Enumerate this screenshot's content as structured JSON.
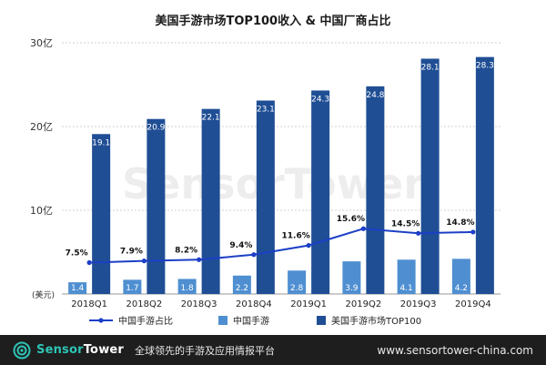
{
  "chart_data": {
    "type": "bar",
    "title": "美国手游市场TOP100收入 & 中国厂商占比",
    "unit_label": "(美元)",
    "categories": [
      "2018Q1",
      "2018Q2",
      "2018Q3",
      "2018Q4",
      "2019Q1",
      "2019Q2",
      "2019Q3",
      "2019Q4"
    ],
    "y_ticks": [
      {
        "value": 10,
        "label": "10亿"
      },
      {
        "value": 20,
        "label": "20亿"
      },
      {
        "value": 30,
        "label": "30亿"
      }
    ],
    "ylim": [
      0,
      30
    ],
    "grid": true,
    "legend_position": "bottom",
    "series": [
      {
        "name": "中国手游",
        "kind": "bar",
        "color": "#4f8fd1",
        "values": [
          1.4,
          1.7,
          1.8,
          2.2,
          2.8,
          3.9,
          4.1,
          4.2
        ],
        "labels": [
          "1.4",
          "1.7",
          "1.8",
          "2.2",
          "2.8",
          "3.9",
          "4.1",
          "4.2"
        ]
      },
      {
        "name": "美国手游市场TOP100",
        "kind": "bar",
        "color": "#1f4e94",
        "values": [
          19.1,
          20.9,
          22.1,
          23.1,
          24.3,
          24.8,
          28.1,
          28.3
        ],
        "labels": [
          "19.1",
          "20.9",
          "22.1",
          "23.1",
          "24.3",
          "24.8",
          "28.1",
          "28.3"
        ]
      },
      {
        "name": "中国手游占比",
        "kind": "line",
        "color": "#1b3fc6",
        "values": [
          7.5,
          7.9,
          8.2,
          9.4,
          11.6,
          15.6,
          14.5,
          14.8
        ],
        "labels": [
          "7.5%",
          "7.9%",
          "8.2%",
          "9.4%",
          "11.6%",
          "15.6%",
          "14.5%",
          "14.8%"
        ]
      }
    ]
  },
  "watermark": "SensorTower",
  "footer": {
    "brand_part1": "Sensor",
    "brand_part2": "Tower",
    "tagline": "全球领先的手游及应用情报平台",
    "url": "www.sensortower-china.com"
  }
}
